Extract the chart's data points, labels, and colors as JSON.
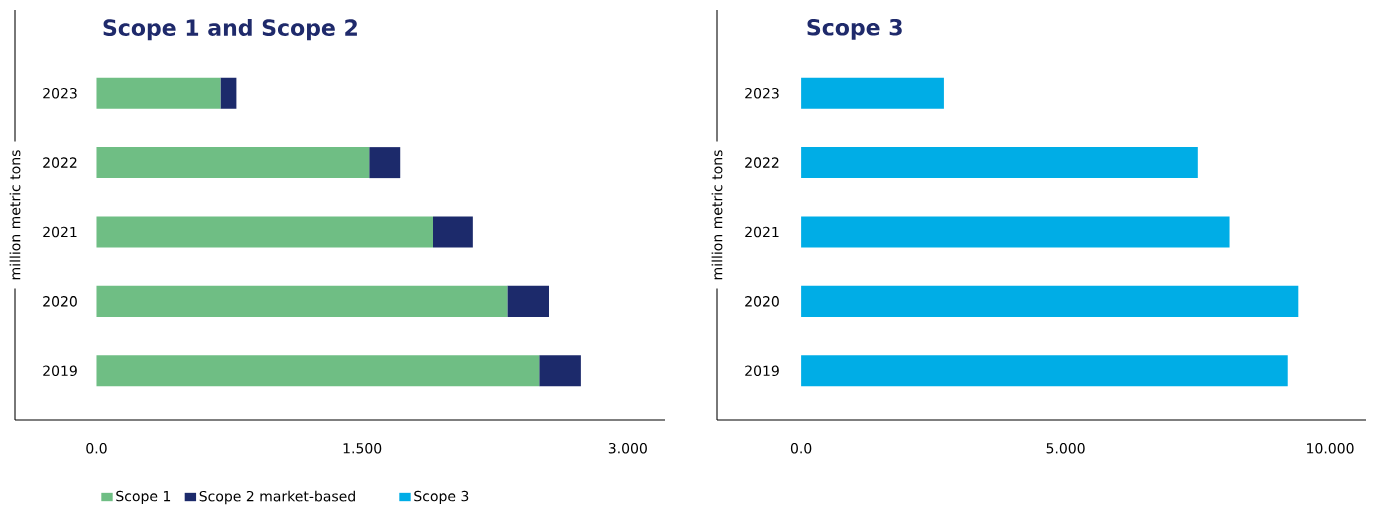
{
  "chart_data": [
    {
      "type": "bar",
      "title": "Scope 1 and Scope 2",
      "ylabel": "million metric tons",
      "orientation": "horizontal",
      "stacked": true,
      "legend": "bottom",
      "categories": [
        "2023",
        "2022",
        "2021",
        "2020",
        "2019"
      ],
      "series": [
        {
          "name": "Scope 1",
          "color": "#6fbe84",
          "values": [
            0.7,
            1.54,
            1.9,
            2.32,
            2.5
          ]
        },
        {
          "name": "Scope 2 market-based",
          "color": "#1c2a6b",
          "values": [
            0.09,
            0.175,
            0.225,
            0.235,
            0.235
          ]
        }
      ],
      "xlim": [
        -0.46,
        3.21
      ],
      "xticks": [
        {
          "value": 0,
          "label": "0.0"
        },
        {
          "value": 1.5,
          "label": "1.500"
        },
        {
          "value": 3,
          "label": "3.000"
        }
      ]
    },
    {
      "type": "bar",
      "title": "Scope 3",
      "ylabel": "million metric tons",
      "orientation": "horizontal",
      "legend": "bottom",
      "categories": [
        "2023",
        "2022",
        "2021",
        "2020",
        "2019"
      ],
      "series": [
        {
          "name": "Scope 3",
          "color": "#00ade6",
          "values": [
            2.7,
            7.5,
            8.1,
            9.4,
            9.2
          ]
        }
      ],
      "xlim": [
        -1.59,
        10.68
      ],
      "xticks": [
        {
          "value": 0,
          "label": "0.0"
        },
        {
          "value": 5,
          "label": "5.000"
        },
        {
          "value": 10,
          "label": "10.000"
        }
      ]
    }
  ]
}
